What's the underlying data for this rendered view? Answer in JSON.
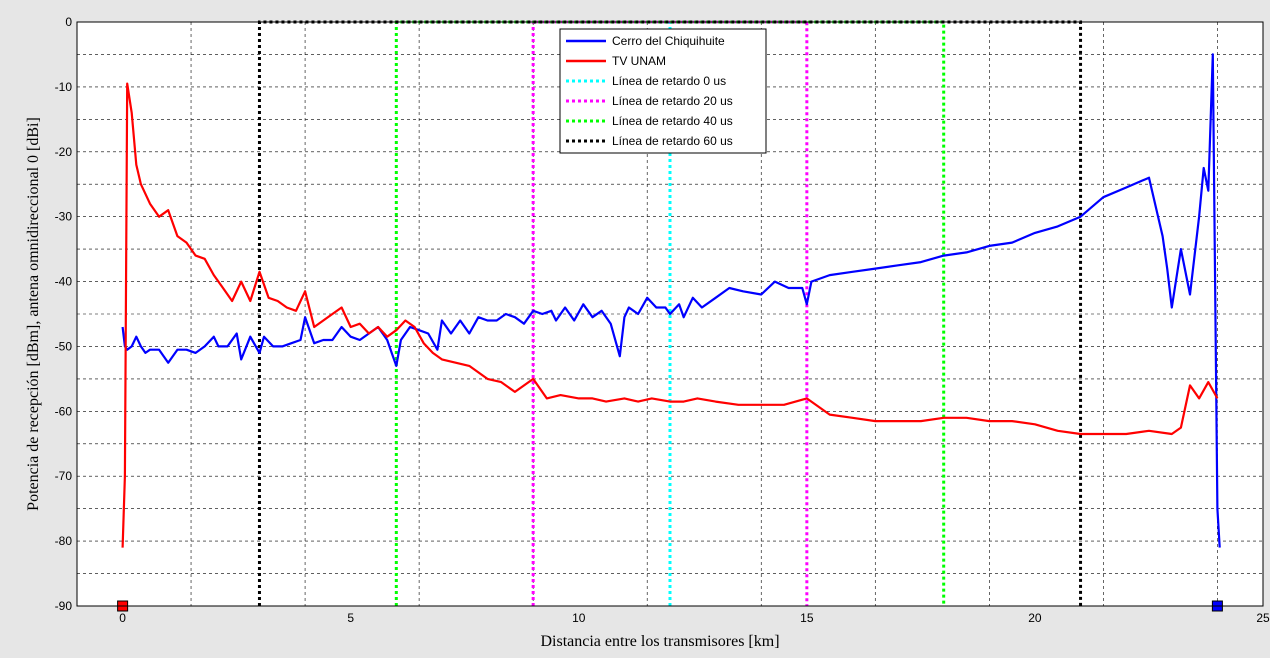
{
  "chart_data": {
    "type": "line",
    "xlabel": "Distancia entre los transmisores [km]",
    "ylabel": "Potencia de recepción [dBm], antena omnidireccional 0 [dBi]",
    "xlim": [
      -1,
      25
    ],
    "ylim": [
      -90,
      0
    ],
    "xticks": [
      0,
      5,
      10,
      15,
      20,
      25
    ],
    "yticks": [
      0,
      -10,
      -20,
      -30,
      -40,
      -50,
      -60,
      -70,
      -80,
      -90
    ],
    "grid": true,
    "legend_position": "top-center",
    "series": [
      {
        "name": "Cerro del Chiquihuite",
        "color": "#0000ff",
        "style": "solid",
        "x": [
          0,
          0.05,
          0.1,
          0.2,
          0.3,
          0.4,
          0.5,
          0.6,
          0.8,
          1.0,
          1.2,
          1.4,
          1.6,
          1.8,
          2.0,
          2.1,
          2.3,
          2.5,
          2.6,
          2.8,
          3.0,
          3.1,
          3.3,
          3.5,
          3.7,
          3.9,
          4.0,
          4.2,
          4.4,
          4.6,
          4.8,
          5.0,
          5.2,
          5.4,
          5.6,
          5.8,
          5.9,
          6.0,
          6.1,
          6.3,
          6.5,
          6.7,
          6.9,
          7.0,
          7.2,
          7.4,
          7.6,
          7.8,
          8.0,
          8.2,
          8.4,
          8.6,
          8.8,
          9.0,
          9.2,
          9.4,
          9.5,
          9.7,
          9.9,
          10.1,
          10.3,
          10.5,
          10.7,
          10.9,
          11.0,
          11.1,
          11.3,
          11.5,
          11.7,
          11.9,
          12.0,
          12.2,
          12.3,
          12.5,
          12.7,
          13.0,
          13.3,
          13.6,
          14.0,
          14.3,
          14.6,
          14.9,
          15.0,
          15.1,
          15.5,
          16.0,
          16.5,
          17.0,
          17.5,
          18.0,
          18.5,
          19.0,
          19.5,
          20.0,
          20.5,
          21.0,
          21.5,
          22.0,
          22.5,
          22.8,
          22.9,
          23.0,
          23.2,
          23.4,
          23.6,
          23.7,
          23.8,
          23.9,
          24.0,
          24.05
        ],
        "values": [
          -47,
          -50,
          -50.5,
          -50,
          -48.5,
          -50,
          -51,
          -50.5,
          -50.5,
          -52.5,
          -50.5,
          -50.5,
          -51,
          -50,
          -48.5,
          -50,
          -50,
          -48,
          -52,
          -48.5,
          -51,
          -48.5,
          -50,
          -50,
          -49.5,
          -49,
          -45.5,
          -49.5,
          -49,
          -49,
          -47,
          -48.5,
          -49,
          -48,
          -47,
          -49,
          -51,
          -53,
          -49,
          -47,
          -47.5,
          -48,
          -50.5,
          -46,
          -48,
          -46,
          -48,
          -45.5,
          -46,
          -46,
          -45,
          -45.5,
          -46.5,
          -44.5,
          -45,
          -44.5,
          -46,
          -44,
          -46,
          -43.5,
          -45.5,
          -44.5,
          -46.5,
          -51.5,
          -45.5,
          -44,
          -45,
          -42.5,
          -44,
          -44,
          -45,
          -43.5,
          -45.5,
          -42.5,
          -44,
          -42.5,
          -41,
          -41.5,
          -42,
          -40,
          -41,
          -41,
          -43.5,
          -40,
          -39,
          -38.5,
          -38,
          -37.5,
          -37,
          -36,
          -35.5,
          -34.5,
          -34,
          -32.5,
          -31.5,
          -30,
          -27,
          -25.5,
          -24,
          -33,
          -38,
          -44,
          -35,
          -42,
          -30,
          -22.5,
          -26,
          -5,
          -75,
          -81
        ]
      },
      {
        "name": "TV UNAM",
        "color": "#ff0000",
        "style": "solid",
        "x": [
          0,
          0.05,
          0.1,
          0.2,
          0.3,
          0.4,
          0.6,
          0.8,
          1.0,
          1.2,
          1.4,
          1.6,
          1.8,
          2.0,
          2.2,
          2.4,
          2.6,
          2.8,
          3.0,
          3.2,
          3.4,
          3.6,
          3.8,
          4.0,
          4.2,
          4.4,
          4.6,
          4.8,
          5.0,
          5.2,
          5.4,
          5.6,
          5.8,
          6.0,
          6.2,
          6.4,
          6.6,
          6.8,
          7.0,
          7.3,
          7.6,
          8.0,
          8.3,
          8.6,
          9.0,
          9.3,
          9.6,
          10.0,
          10.3,
          10.6,
          11.0,
          11.3,
          11.6,
          12.0,
          12.3,
          12.6,
          13.0,
          13.5,
          14.0,
          14.5,
          15.0,
          15.5,
          16.0,
          16.5,
          17.0,
          17.5,
          18.0,
          18.5,
          19.0,
          19.5,
          20.0,
          20.5,
          21.0,
          21.5,
          22.0,
          22.5,
          23.0,
          23.2,
          23.4,
          23.6,
          23.8,
          24.0
        ],
        "values": [
          -81,
          -70,
          -9.5,
          -14,
          -22,
          -25,
          -28,
          -30,
          -29,
          -33,
          -34,
          -36,
          -36.5,
          -39,
          -41,
          -43,
          -40,
          -43,
          -38.5,
          -42.5,
          -43,
          -44,
          -44.5,
          -41.5,
          -47,
          -46,
          -45,
          -44,
          -47,
          -46.5,
          -48,
          -47,
          -48.5,
          -47.5,
          -46,
          -47,
          -49.5,
          -51,
          -52,
          -52.5,
          -53,
          -55,
          -55.5,
          -57,
          -55,
          -58,
          -57.5,
          -58,
          -58,
          -58.5,
          -58,
          -58.5,
          -58,
          -58.5,
          -58.5,
          -58,
          -58.5,
          -59,
          -59,
          -59,
          -58,
          -60.5,
          -61,
          -61.5,
          -61.5,
          -61.5,
          -61,
          -61,
          -61.5,
          -61.5,
          -62,
          -63,
          -63.5,
          -63.5,
          -63.5,
          -63,
          -63.5,
          -62.5,
          -56,
          -58,
          -55.5,
          -58
        ]
      },
      {
        "name": "Línea de retardo 0 us",
        "color": "#00ffff",
        "style": "dotted",
        "x": [
          12,
          12
        ],
        "values": [
          -90,
          0
        ]
      },
      {
        "name": "Línea de retardo 20 us",
        "color": "#ff00ff",
        "style": "dotted",
        "x": [
          9,
          15
        ],
        "values": [
          -90,
          0
        ]
      },
      {
        "name": "Línea de retardo 40 us",
        "color": "#00ff00",
        "style": "dotted",
        "x": [
          6,
          18
        ],
        "values": [
          -90,
          0
        ]
      },
      {
        "name": "Línea de retardo 60 us",
        "color": "#000000",
        "style": "dotted",
        "x": [
          3,
          21
        ],
        "values": [
          -90,
          0
        ]
      }
    ],
    "markers": [
      {
        "x": 0,
        "y": -90,
        "color": "#ff0000"
      },
      {
        "x": 24,
        "y": -90,
        "color": "#0000ff"
      }
    ]
  }
}
